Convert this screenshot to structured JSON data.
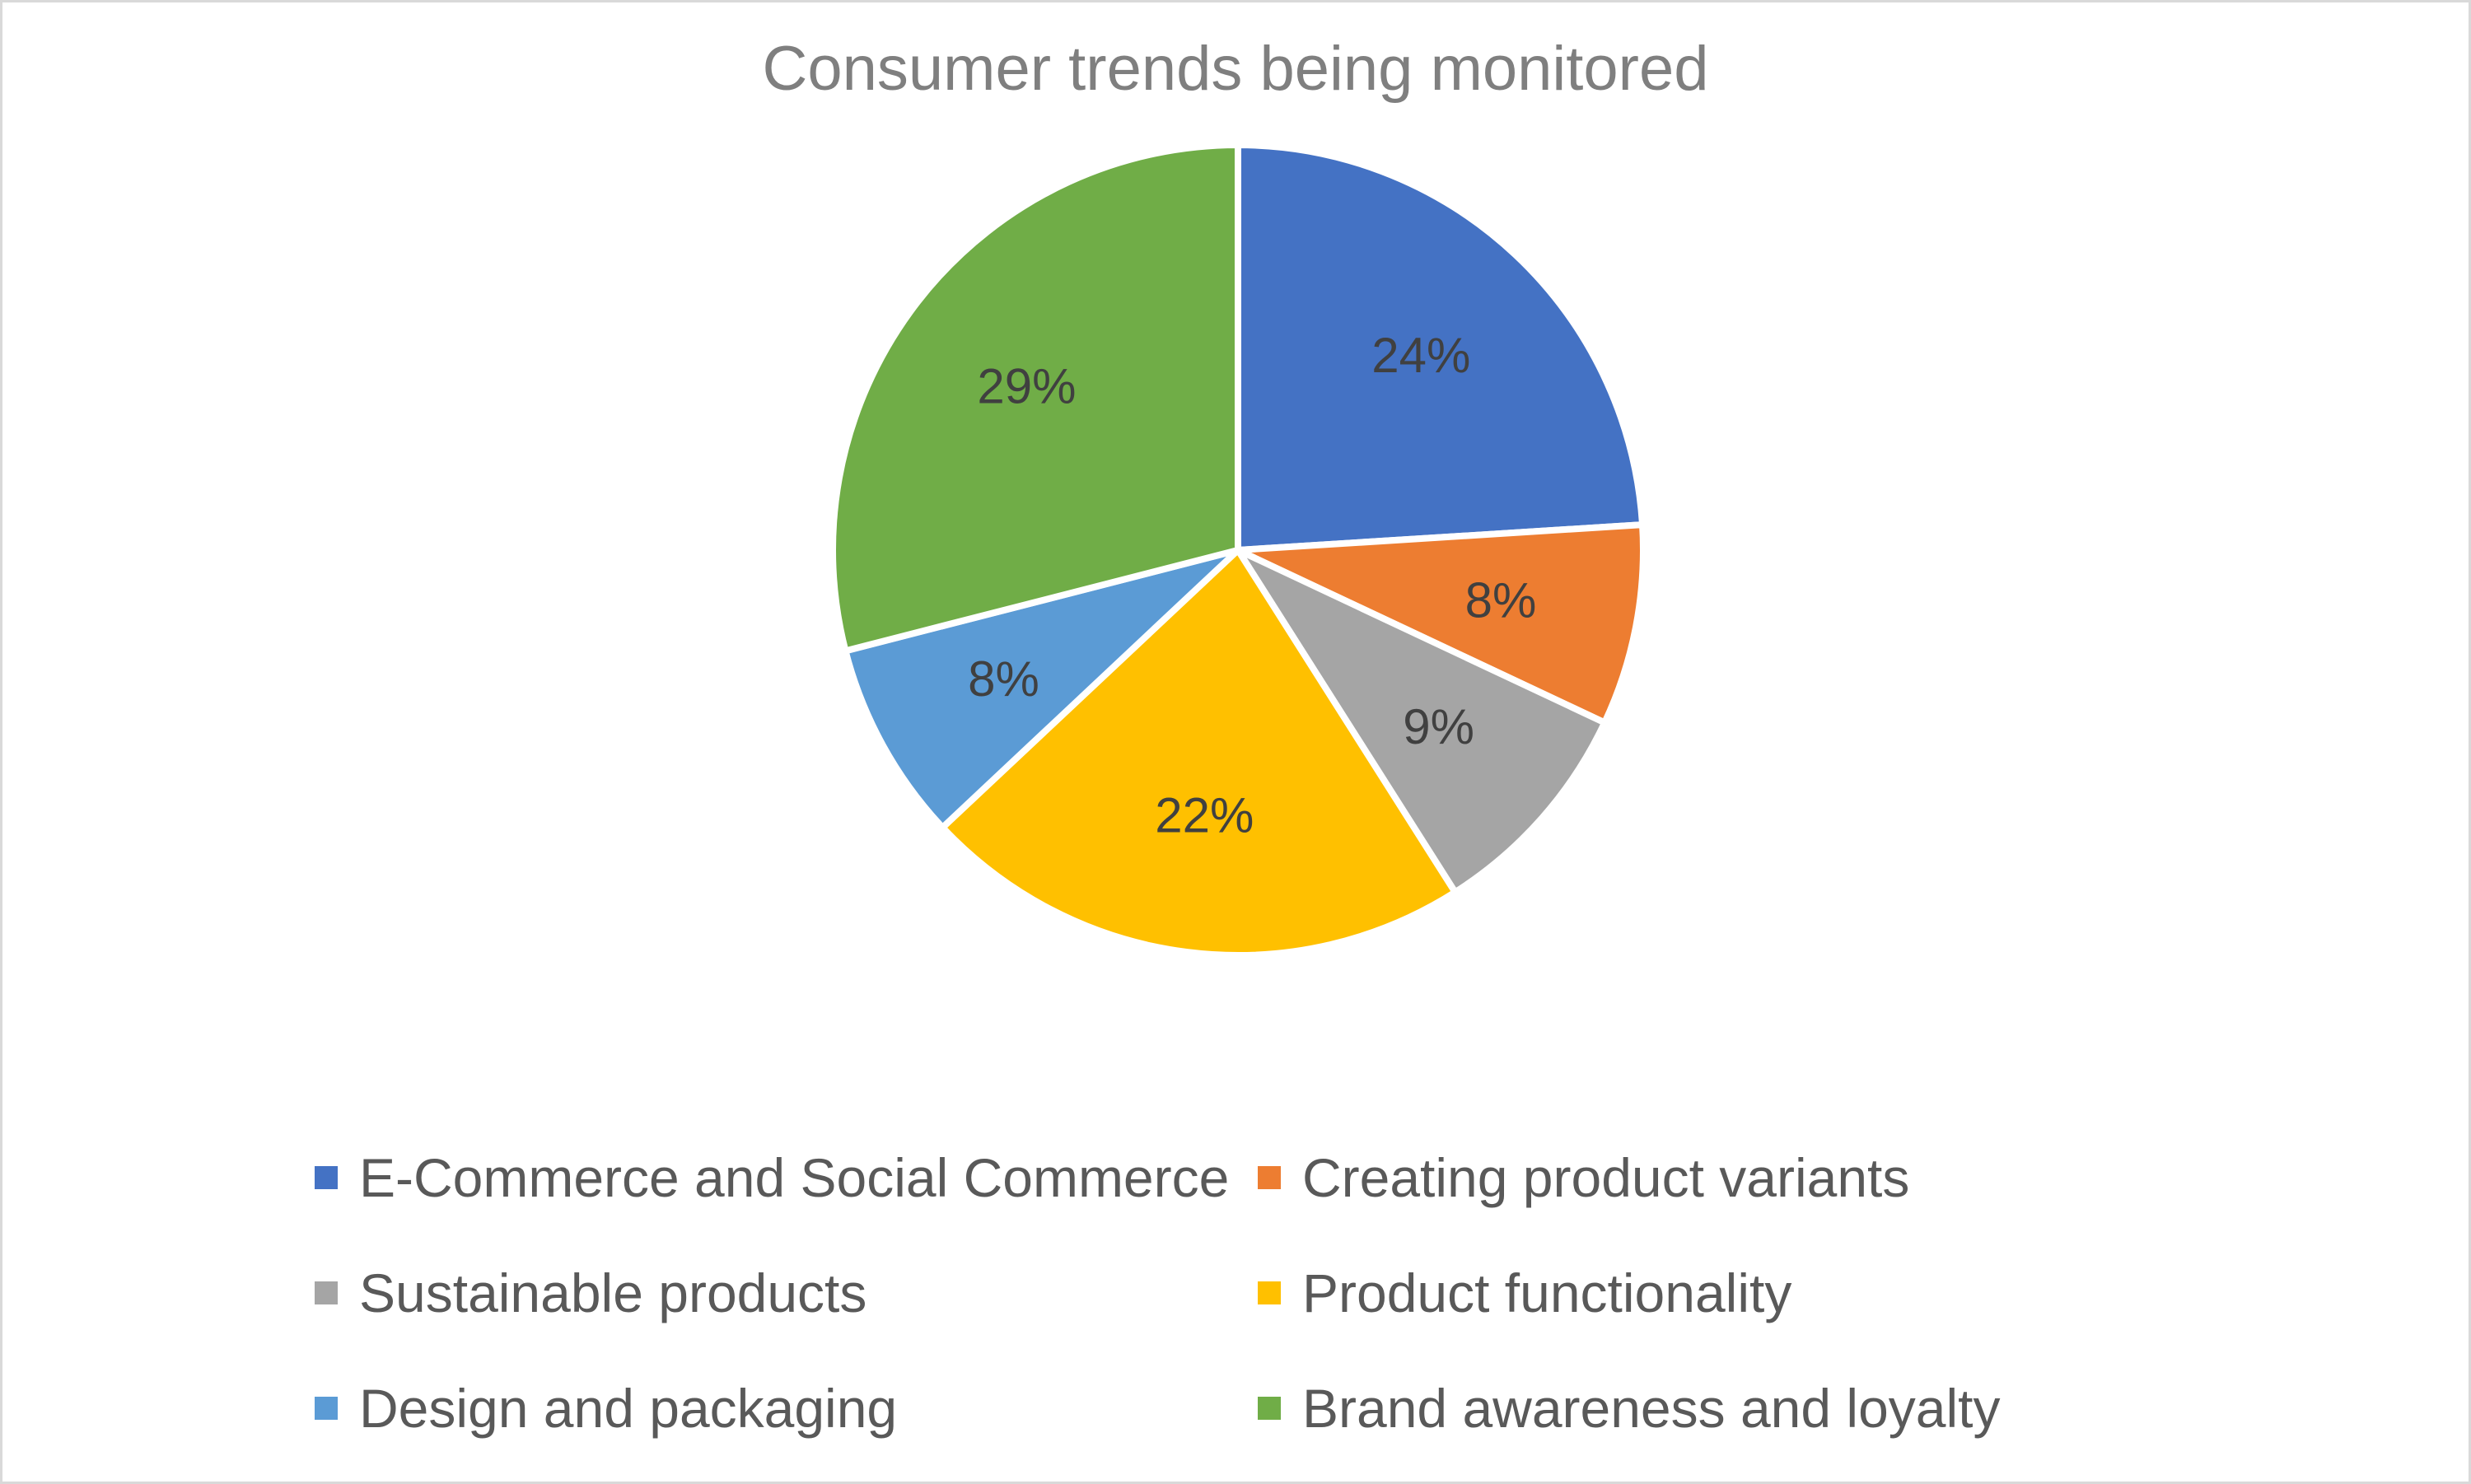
{
  "chart_data": {
    "type": "pie",
    "title": "Consumer trends being monitored",
    "categories": [
      "E-Commerce and Social Commerce",
      "Creating product variants",
      "Sustainable products",
      "Product functionality",
      "Design and packaging",
      "Brand awareness and loyalty"
    ],
    "values": [
      24,
      8,
      9,
      22,
      8,
      29
    ],
    "labels": [
      "24%",
      "8%",
      "9%",
      "22%",
      "8%",
      "29%"
    ],
    "colors": [
      "#4472C4",
      "#ED7D31",
      "#A5A5A5",
      "#FFC000",
      "#5B9BD5",
      "#70AD47"
    ],
    "legend_position": "bottom"
  }
}
